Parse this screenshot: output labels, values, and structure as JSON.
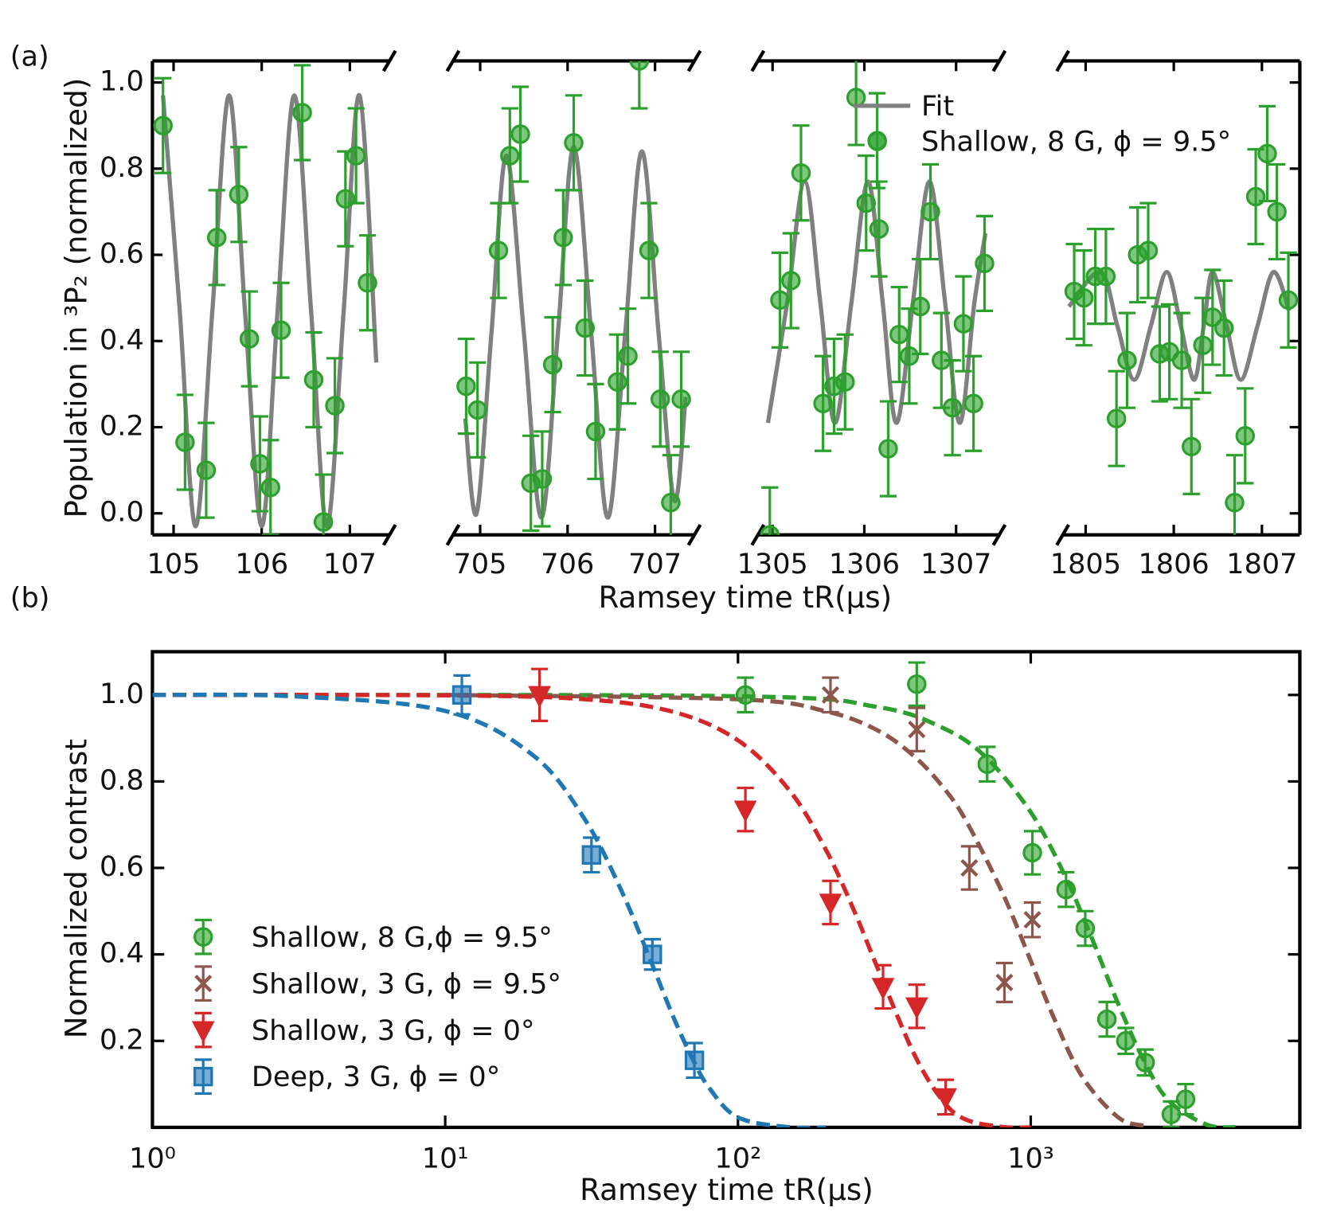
{
  "chart_data": [
    {
      "type": "line",
      "label": "(a)",
      "xlabel": "Ramsey time tR(μs)",
      "ylabel": "Population in ³P₂ (normalized)",
      "ylim": [
        -0.05,
        1.05
      ],
      "yticks": [
        {
          "value": 0,
          "label": "0.0"
        },
        0.2,
        0.4,
        0.6,
        0.8,
        {
          "value": 1,
          "label": "1.0"
        }
      ],
      "legend": "upper right",
      "series": [
        {
          "name": "Fit",
          "color": "#808080"
        },
        {
          "name": "Shallow, 8 G, ϕ = 9.5°",
          "color": "#2ca02c"
        }
      ],
      "segments": [
        {
          "xlim": [
            104.76,
            107.45
          ],
          "xticks": [
            105,
            106,
            107
          ],
          "fit_x": [
            104.88,
            105.07,
            105.25,
            105.44,
            105.63,
            105.81,
            106.0,
            106.18,
            106.37,
            106.56,
            106.74,
            106.93,
            107.11,
            107.3
          ],
          "fit_y": [
            0.97,
            0.47,
            -0.03,
            0.47,
            0.97,
            0.47,
            -0.03,
            0.47,
            0.97,
            0.47,
            -0.03,
            0.47,
            0.97,
            0.35
          ],
          "x": [
            104.88,
            105.13,
            105.37,
            105.49,
            105.74,
            105.86,
            105.98,
            106.1,
            106.22,
            106.46,
            106.59,
            106.7,
            106.83,
            106.95,
            107.07,
            107.2
          ],
          "values": [
            0.9,
            0.165,
            0.1,
            0.64,
            0.74,
            0.405,
            0.115,
            0.06,
            0.425,
            0.93,
            0.31,
            -0.02,
            0.25,
            0.73,
            0.83,
            0.535
          ],
          "errors": [
            0.11,
            0.11,
            0.11,
            0.11,
            0.11,
            0.11,
            0.11,
            0.11,
            0.11,
            0.11,
            0.11,
            0.11,
            0.11,
            0.11,
            0.11,
            0.11
          ]
        },
        {
          "xlim": [
            704.69,
            707.45
          ],
          "xticks": [
            705,
            706,
            707
          ],
          "fit_x": [
            704.83,
            704.96,
            705.13,
            705.3,
            705.5,
            705.7,
            705.89,
            706.07,
            706.27,
            706.46,
            706.66,
            706.85,
            707.04,
            707.22,
            707.35
          ],
          "fit_y": [
            0.22,
            0.0,
            0.42,
            0.83,
            0.42,
            -0.01,
            0.42,
            0.85,
            0.42,
            -0.01,
            0.42,
            0.84,
            0.42,
            0.03,
            0.27
          ],
          "x": [
            704.84,
            704.97,
            705.21,
            705.34,
            705.46,
            705.58,
            705.71,
            705.83,
            705.95,
            706.07,
            706.2,
            706.32,
            706.57,
            706.69,
            706.82,
            706.93,
            707.06,
            707.18,
            707.3
          ],
          "values": [
            0.295,
            0.24,
            0.61,
            0.83,
            0.88,
            0.07,
            0.08,
            0.345,
            0.64,
            0.86,
            0.43,
            0.19,
            0.305,
            0.365,
            1.05,
            0.61,
            0.265,
            0.025,
            0.265
          ],
          "errors": [
            0.11,
            0.11,
            0.11,
            0.11,
            0.11,
            0.11,
            0.11,
            0.11,
            0.11,
            0.11,
            0.11,
            0.11,
            0.11,
            0.11,
            0.11,
            0.11,
            0.11,
            0.11,
            0.11
          ]
        },
        {
          "xlim": [
            1304.84,
            1307.47
          ],
          "xticks": [
            1305,
            1306,
            1307
          ],
          "fit_x": [
            1304.95,
            1305.16,
            1305.35,
            1305.52,
            1305.68,
            1305.86,
            1306.04,
            1306.2,
            1306.35,
            1306.53,
            1306.71,
            1306.88,
            1307.04,
            1307.2,
            1307.32
          ],
          "fit_y": [
            0.21,
            0.49,
            0.77,
            0.49,
            0.21,
            0.49,
            0.77,
            0.49,
            0.21,
            0.49,
            0.77,
            0.49,
            0.21,
            0.49,
            0.65
          ],
          "x": [
            1304.97,
            1305.08,
            1305.2,
            1305.31,
            1305.55,
            1305.67,
            1305.79,
            1305.91,
            1306.02,
            1306.14,
            1306.16,
            1306.26,
            1306.38,
            1306.49,
            1306.61,
            1306.72,
            1306.84,
            1306.96,
            1307.08,
            1307.19,
            1307.31
          ],
          "values": [
            -0.05,
            0.495,
            0.54,
            0.79,
            0.255,
            0.295,
            0.305,
            0.965,
            0.72,
            0.865,
            0.66,
            0.15,
            0.415,
            0.365,
            0.48,
            0.7,
            0.355,
            0.245,
            0.44,
            0.255,
            0.58
          ],
          "errors": [
            0.11,
            0.11,
            0.11,
            0.11,
            0.11,
            0.11,
            0.11,
            0.11,
            0.11,
            0.11,
            0.11,
            0.11,
            0.11,
            0.11,
            0.11,
            0.11,
            0.11,
            0.11,
            0.11,
            0.11,
            0.11
          ]
        },
        {
          "xlim": [
            1804.74,
            1807.43
          ],
          "xticks": [
            1805,
            1806,
            1807
          ],
          "fit_x": [
            1804.81,
            1805.17,
            1805.36,
            1805.55,
            1805.74,
            1805.92,
            1806.08,
            1806.23,
            1806.34,
            1806.44,
            1806.6,
            1806.76,
            1806.95,
            1807.13,
            1807.31
          ],
          "fit_y": [
            0.48,
            0.56,
            0.435,
            0.31,
            0.435,
            0.56,
            0.435,
            0.31,
            0.435,
            0.56,
            0.435,
            0.31,
            0.435,
            0.56,
            0.47
          ],
          "x": [
            1804.87,
            1804.98,
            1805.11,
            1805.23,
            1805.35,
            1805.47,
            1805.59,
            1805.71,
            1805.84,
            1805.95,
            1806.09,
            1806.2,
            1806.33,
            1806.44,
            1806.57,
            1806.69,
            1806.81,
            1806.93,
            1807.06,
            1807.17,
            1807.3
          ],
          "values": [
            0.515,
            0.5,
            0.55,
            0.55,
            0.22,
            0.355,
            0.6,
            0.61,
            0.37,
            0.375,
            0.355,
            0.155,
            0.39,
            0.455,
            0.43,
            0.025,
            0.18,
            0.735,
            0.835,
            0.7,
            0.495
          ],
          "errors": [
            0.11,
            0.11,
            0.11,
            0.11,
            0.11,
            0.11,
            0.11,
            0.11,
            0.11,
            0.11,
            0.11,
            0.11,
            0.11,
            0.11,
            0.11,
            0.11,
            0.11,
            0.11,
            0.11,
            0.11,
            0.11
          ]
        }
      ]
    },
    {
      "type": "scatter",
      "label": "(b)",
      "xlabel": "Ramsey time tR(μs)",
      "ylabel": "Normalized contrast",
      "xscale": "log",
      "xlim": [
        1,
        8300
      ],
      "xticks": [
        {
          "value": 1,
          "label": "10⁰"
        },
        {
          "value": 10,
          "label": "10¹"
        },
        {
          "value": 100,
          "label": "10²"
        },
        {
          "value": 1000,
          "label": "10³"
        }
      ],
      "ylim": [
        0,
        1.1
      ],
      "yticks": [
        0.2,
        0.4,
        0.6,
        0.8,
        {
          "value": 1,
          "label": "1.0"
        }
      ],
      "legend": "lower left",
      "series": [
        {
          "name": "Shallow, 8 G,ϕ = 9.5°",
          "color": "#2ca02c",
          "marker": "circle",
          "x": [
            106,
            408,
            710,
            1013,
            1320,
            1535,
            1820,
            2112,
            2460,
            3020,
            3380
          ],
          "values": [
            1.0,
            1.025,
            0.84,
            0.635,
            0.55,
            0.46,
            0.25,
            0.2,
            0.15,
            0.03,
            0.065
          ],
          "errors": [
            0.04,
            0.05,
            0.04,
            0.05,
            0.04,
            0.04,
            0.04,
            0.03,
            0.03,
            0.03,
            0.035
          ],
          "fit_x": [
            1,
            100,
            300,
            500,
            700,
            1000,
            1300,
            1600,
            2000,
            2500,
            3000,
            4000,
            5000
          ],
          "fit_y": [
            1.0,
            0.997,
            0.972,
            0.924,
            0.857,
            0.729,
            0.586,
            0.445,
            0.282,
            0.139,
            0.058,
            0.006,
            0.0004
          ]
        },
        {
          "name": "Shallow, 3 G, ϕ = 9.5°",
          "color": "#8c564b",
          "marker": "x",
          "x": [
            207,
            408,
            617,
            1013,
            813
          ],
          "values": [
            1.0,
            0.92,
            0.6,
            0.48,
            0.335
          ],
          "errors": [
            0.04,
            0.05,
            0.05,
            0.04,
            0.045
          ],
          "fit_x": [
            10,
            100,
            200,
            300,
            400,
            500,
            600,
            800,
            1000,
            1200,
            1500,
            2000,
            2500
          ],
          "fit_y": [
            1.0,
            0.99,
            0.962,
            0.918,
            0.858,
            0.788,
            0.71,
            0.543,
            0.385,
            0.253,
            0.117,
            0.022,
            0.003
          ]
        },
        {
          "name": "Shallow, 3 G, ϕ = 0°",
          "color": "#d62728",
          "marker": "triangle",
          "x": [
            21,
            106,
            207,
            313,
            408,
            512
          ],
          "values": [
            1.0,
            0.735,
            0.52,
            0.325,
            0.28,
            0.07
          ],
          "errors": [
            0.06,
            0.05,
            0.05,
            0.05,
            0.05,
            0.04
          ],
          "fit_x": [
            1,
            10,
            30,
            60,
            100,
            150,
            200,
            250,
            300,
            400,
            500,
            600,
            800,
            1000
          ],
          "fit_y": [
            1.0,
            0.999,
            0.99,
            0.961,
            0.895,
            0.779,
            0.641,
            0.499,
            0.368,
            0.169,
            0.062,
            0.018,
            0.001,
            0.0
          ]
        },
        {
          "name": "Deep, 3 G, ϕ = 0°",
          "color": "#1f77b4",
          "marker": "square",
          "x": [
            11.4,
            31.6,
            51,
            71
          ],
          "values": [
            1.0,
            0.63,
            0.4,
            0.155
          ],
          "errors": [
            0.045,
            0.04,
            0.035,
            0.04
          ],
          "fit_x": [
            1,
            3,
            10,
            20,
            30,
            40,
            50,
            60,
            70,
            80,
            100,
            150,
            200
          ],
          "fit_y": [
            1.0,
            0.997,
            0.963,
            0.86,
            0.712,
            0.547,
            0.39,
            0.257,
            0.158,
            0.09,
            0.023,
            0.0002,
            0.0
          ]
        }
      ]
    }
  ]
}
